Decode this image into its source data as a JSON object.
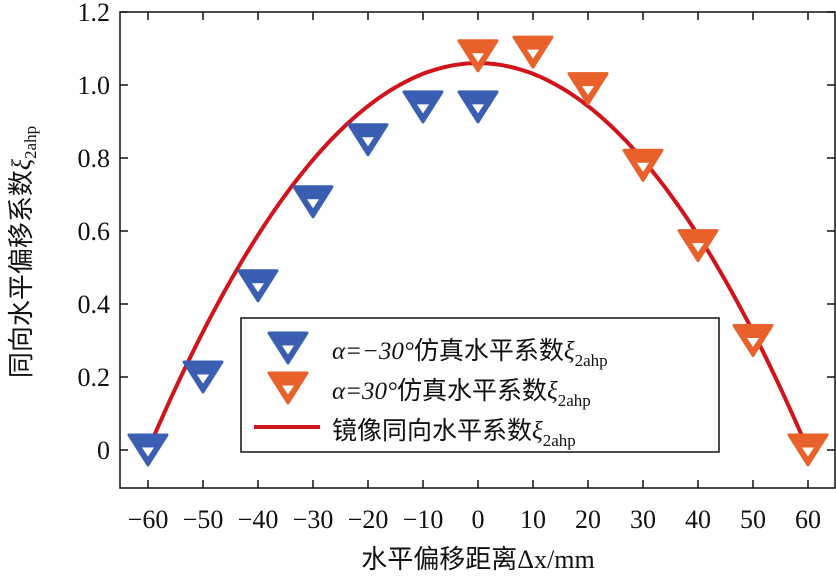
{
  "chart_data": {
    "type": "scatter",
    "xlabel": "水平偏移距离Δx/mm",
    "ylabel": "同向水平偏移系数ξ2ahp",
    "ylabel_main": "同向水平偏移系数",
    "ylabel_sym": "ξ",
    "ylabel_sub": "2ahp",
    "xlim": [
      -65,
      65
    ],
    "ylim": [
      -0.1,
      1.2
    ],
    "xticks": [
      -60,
      -50,
      -40,
      -30,
      -20,
      -10,
      0,
      10,
      20,
      30,
      40,
      50,
      60
    ],
    "xtick_labels": [
      "−60",
      "−50",
      "−40",
      "−30",
      "−20",
      "−10",
      "0",
      "10",
      "20",
      "30",
      "40",
      "50",
      "60"
    ],
    "yticks": [
      0,
      0.2,
      0.4,
      0.6,
      0.8,
      1.0,
      1.2
    ],
    "ytick_labels": [
      "0",
      "0.2",
      "0.4",
      "0.6",
      "0.8",
      "1.0",
      "1.2"
    ],
    "grid": false,
    "legend_position": "bottom-center",
    "series": [
      {
        "name": "α=−30°仿真水平系数ξ2ahp",
        "label_pre": "α=−30°",
        "label_cn": "仿真水平系数",
        "label_sym": "ξ",
        "label_sub": "2ahp",
        "kind": "marker",
        "color": "#3a5fb2",
        "x": [
          -60,
          -50,
          -40,
          -30,
          -20,
          -10,
          0
        ],
        "y": [
          0.0,
          0.2,
          0.45,
          0.68,
          0.85,
          0.94,
          0.94
        ]
      },
      {
        "name": "α=30°仿真水平系数ξ2ahp",
        "label_pre": "α=30°",
        "label_cn": "仿真水平系数",
        "label_sym": "ξ",
        "label_sub": "2ahp",
        "kind": "marker",
        "color": "#e8612b",
        "x": [
          0,
          10,
          20,
          30,
          40,
          50,
          60
        ],
        "y": [
          1.08,
          1.09,
          0.99,
          0.78,
          0.56,
          0.3,
          0.0
        ]
      },
      {
        "name": "镜像同向水平系数ξ2ahp",
        "label_pre": "",
        "label_cn": "镜像同向水平系数",
        "label_sym": "ξ",
        "label_sub": "2ahp",
        "kind": "line",
        "color": "#d0141c",
        "x": [
          -60,
          -50,
          -40,
          -30,
          -20,
          -10,
          0,
          10,
          20,
          30,
          40,
          50,
          60
        ],
        "y": [
          0.0,
          0.323,
          0.589,
          0.795,
          0.942,
          1.031,
          1.06,
          1.031,
          0.942,
          0.795,
          0.589,
          0.323,
          0.0
        ]
      }
    ]
  }
}
